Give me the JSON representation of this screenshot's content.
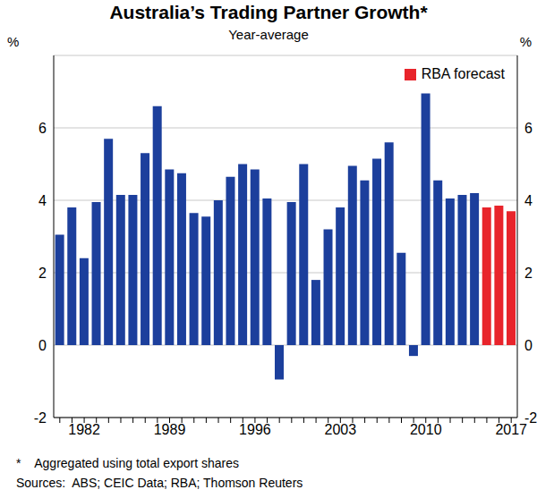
{
  "chart_data": {
    "type": "bar",
    "title": "Australia’s Trading Partner Growth*",
    "subtitle": "Year-average",
    "y_label": "%",
    "categories": [
      null,
      null,
      "1982",
      null,
      null,
      null,
      null,
      null,
      null,
      "1989",
      null,
      null,
      null,
      null,
      null,
      null,
      "1996",
      null,
      null,
      null,
      null,
      null,
      null,
      "2003",
      null,
      null,
      null,
      null,
      null,
      null,
      "2010",
      null,
      null,
      null,
      null,
      null,
      null,
      "2017"
    ],
    "series": [
      {
        "color": "#1c3f9c",
        "values": [
          3.05,
          3.8,
          2.4,
          3.95,
          5.7,
          4.15,
          4.15,
          5.3,
          6.6,
          4.85,
          4.75,
          3.65,
          3.55,
          4.0,
          4.65,
          5.0,
          4.85,
          4.05,
          -0.95,
          3.95,
          5.0,
          1.8,
          3.2,
          3.8,
          4.95,
          4.55,
          5.15,
          5.6,
          2.55,
          -0.3,
          6.95,
          4.55,
          4.05,
          4.15,
          4.2,
          null,
          null,
          null
        ]
      },
      {
        "name": "RBA forecast",
        "color": "#e8242b",
        "values": [
          null,
          null,
          null,
          null,
          null,
          null,
          null,
          null,
          null,
          null,
          null,
          null,
          null,
          null,
          null,
          null,
          null,
          null,
          null,
          null,
          null,
          null,
          null,
          null,
          null,
          null,
          null,
          null,
          null,
          null,
          null,
          null,
          null,
          null,
          null,
          3.8,
          3.85,
          3.7
        ]
      }
    ],
    "ylim": [
      -2,
      8
    ],
    "yticks": [
      -2,
      0,
      2,
      4,
      6
    ],
    "grid": true,
    "legend": "top-right",
    "notes": [
      "*    Aggregated using total export shares",
      "Sources:  ABS; CEIC Data; RBA; Thomson Reuters"
    ]
  }
}
